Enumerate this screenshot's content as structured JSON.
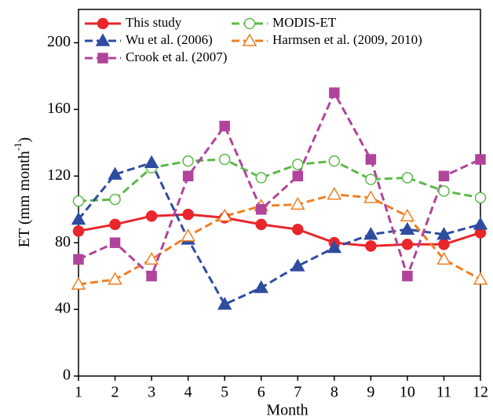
{
  "chart_data": {
    "type": "line",
    "x_label": "Month",
    "y_label": {
      "text": "ET (mm month",
      "superscript": "-1",
      "suffix": ")"
    },
    "x": [
      1,
      2,
      3,
      4,
      5,
      6,
      7,
      8,
      9,
      10,
      11,
      12
    ],
    "xlim": [
      1,
      12
    ],
    "xticks": [
      1,
      2,
      3,
      4,
      5,
      6,
      7,
      8,
      9,
      10,
      11,
      12
    ],
    "ylim": [
      0,
      220
    ],
    "yticks": [
      0,
      40,
      80,
      120,
      160,
      200
    ],
    "grid": false,
    "legend": "top-left",
    "series": [
      {
        "name": "This study",
        "color": "#e8262b",
        "marker": "circle",
        "filled": true,
        "line_style": "solid",
        "values": [
          87,
          91,
          96,
          97,
          95,
          91,
          88,
          80,
          78,
          79,
          79,
          86
        ]
      },
      {
        "name": "MODIS-ET",
        "color": "#5cb947",
        "marker": "circle",
        "filled": false,
        "line_style": "dashed",
        "values": [
          105,
          106,
          125,
          129,
          130,
          119,
          127,
          129,
          118,
          119,
          111,
          107
        ]
      },
      {
        "name": "Wu et al. (2006)",
        "color": "#2e4da0",
        "marker": "triangle",
        "filled": true,
        "line_style": "dashed",
        "values": [
          94,
          121,
          128,
          82,
          43,
          53,
          66,
          77,
          85,
          88,
          85,
          91
        ]
      },
      {
        "name": "Harmsen et al. (2009, 2010)",
        "color": "#f07f22",
        "marker": "triangle",
        "filled": false,
        "line_style": "dashed",
        "values": [
          55,
          58,
          70,
          84,
          96,
          102,
          103,
          109,
          107,
          96,
          70,
          58
        ]
      },
      {
        "name": "Crook et al. (2007)",
        "color": "#b0449b",
        "marker": "square",
        "filled": true,
        "line_style": "dashed",
        "values": [
          70,
          80,
          60,
          120,
          150,
          100,
          120,
          170,
          130,
          60,
          120,
          130
        ]
      }
    ]
  }
}
